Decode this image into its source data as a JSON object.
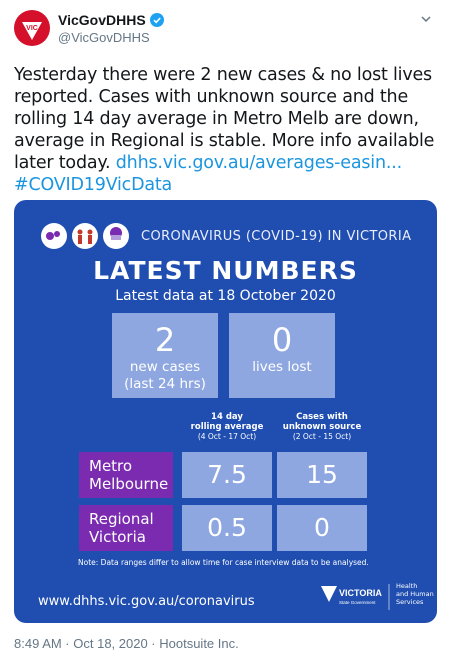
{
  "account": {
    "name": "VicGovDHHS",
    "handle": "@VicGovDHHS",
    "avatar_color": "#d4102a",
    "verified_color": "#1da1f2"
  },
  "tweet": {
    "text": "Yesterday there were 2 new cases & no lost lives reported. Cases with unknown source and the rolling 14 day average in Metro Melb are down, average in Regional is stable. More info available later today. ",
    "link": "dhhs.vic.gov.au/averages-easin...",
    "hashtag": "#COVID19VicData",
    "link_color": "#1b95e0"
  },
  "card": {
    "background": "#1f4eb0",
    "header": "CORONAVIRUS (COVID-19) IN VICTORIA",
    "title": "LATEST NUMBERS",
    "as_of": "Latest data at 18 October 2020",
    "new_cases": {
      "value": "2",
      "label_line1": "new cases",
      "label_line2": "(last 24 hrs)"
    },
    "lives_lost": {
      "value": "0",
      "label": "lives lost"
    },
    "columns": [
      {
        "line1": "14 day",
        "line2": "rolling average",
        "range": "(4 Oct - 17 Oct)"
      },
      {
        "line1": "Cases with",
        "line2": "unknown source",
        "range": "(2 Oct - 15 Oct)"
      }
    ],
    "rows": [
      {
        "line1": "Metro",
        "line2": "Melbourne",
        "avg": "7.5",
        "unknown": "15"
      },
      {
        "line1": "Regional",
        "line2": "Victoria",
        "avg": "0.5",
        "unknown": "0"
      }
    ],
    "note": "Note: Data ranges differ to allow time for case interview data to be analysed.",
    "url": "www.dhhs.vic.gov.au/coronavirus",
    "logo_text": "VICTORIA",
    "logo_sub": "State Government",
    "dept_line1": "Health",
    "dept_line2": "and Human",
    "dept_line3": "Services"
  },
  "footer": "8:49 AM · Oct 18, 2020 · Hootsuite Inc."
}
